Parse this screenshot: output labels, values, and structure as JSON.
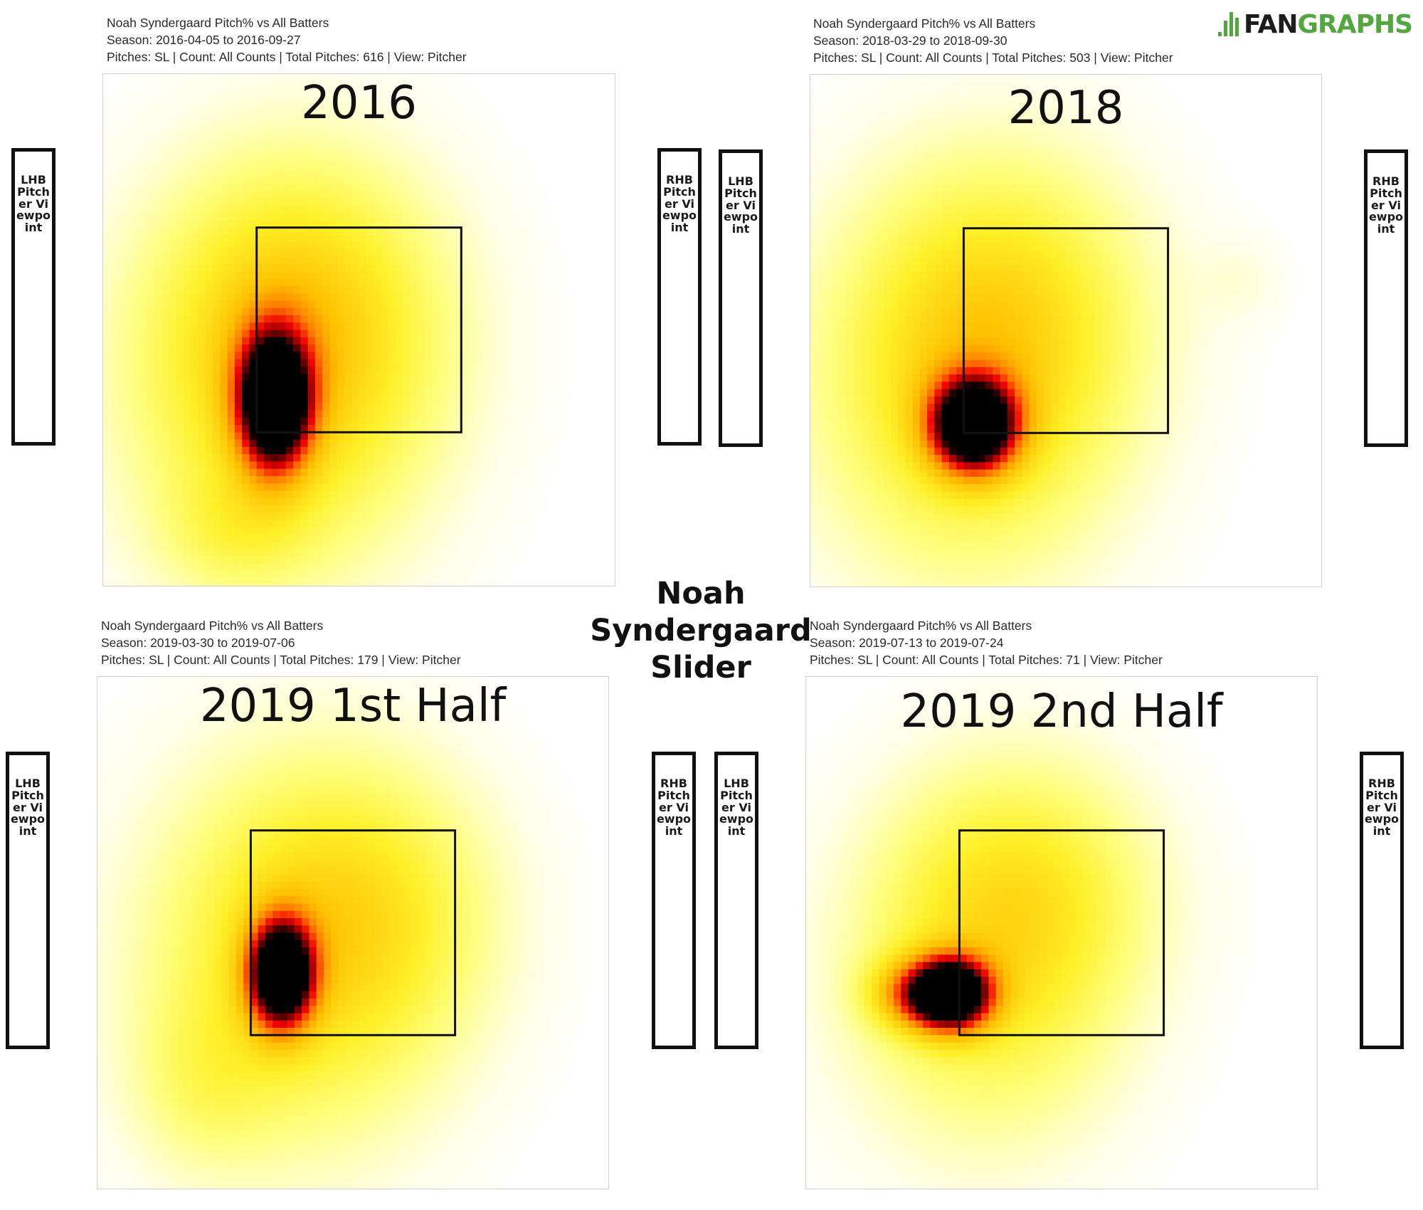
{
  "chart_data": {
    "title": "Noah Syndergaard Slider",
    "type": "heatmap",
    "panels": [
      {
        "title": "2016",
        "meta": [
          "Noah Syndergaard Pitch% vs All Batters",
          "Season: 2016-04-05 to 2016-09-27",
          "Pitches: SL | Count: All Counts | Total Pitches: 616 | View: Pitcher"
        ],
        "left_label": "LHB Pitcher Viewpoint",
        "right_label": "RHB Pitcher Viewpoint",
        "hotspots": [
          {
            "x": 0.34,
            "y": 0.62,
            "sx": 0.22,
            "sy": 0.28,
            "w": 0.35
          },
          {
            "x": 0.4,
            "y": 0.45,
            "sx": 0.2,
            "sy": 0.22,
            "w": 0.25
          },
          {
            "x": 0.25,
            "y": 0.9,
            "sx": 0.1,
            "sy": 0.08,
            "w": 0.12
          },
          {
            "x": 0.335,
            "y": 0.64,
            "sx": 0.05,
            "sy": 0.095,
            "w": 1.0
          }
        ]
      },
      {
        "title": "2018",
        "meta": [
          "Noah Syndergaard Pitch% vs All Batters",
          "Season: 2018-03-29 to 2018-09-30",
          "Pitches: SL | Count: All Counts | Total Pitches: 503 | View: Pitcher"
        ],
        "left_label": "LHB Pitcher Viewpoint",
        "right_label": "RHB Pitcher Viewpoint",
        "hotspots": [
          {
            "x": 0.3,
            "y": 0.62,
            "sx": 0.22,
            "sy": 0.28,
            "w": 0.35
          },
          {
            "x": 0.4,
            "y": 0.45,
            "sx": 0.2,
            "sy": 0.22,
            "w": 0.22
          },
          {
            "x": 0.85,
            "y": 0.4,
            "sx": 0.06,
            "sy": 0.06,
            "w": 0.06
          },
          {
            "x": 0.32,
            "y": 0.685,
            "sx": 0.06,
            "sy": 0.065,
            "w": 1.0
          }
        ]
      },
      {
        "title": "2019 1st Half",
        "meta": [
          "Noah Syndergaard Pitch% vs All Batters",
          "Season: 2019-03-30 to 2019-07-06",
          "Pitches: SL | Count: All Counts | Total Pitches: 179 | View: Pitcher"
        ],
        "left_label": "LHB Pitcher Viewpoint",
        "right_label": "RHB Pitcher Viewpoint",
        "hotspots": [
          {
            "x": 0.38,
            "y": 0.55,
            "sx": 0.22,
            "sy": 0.28,
            "w": 0.35
          },
          {
            "x": 0.55,
            "y": 0.45,
            "sx": 0.18,
            "sy": 0.2,
            "w": 0.2
          },
          {
            "x": 0.2,
            "y": 0.8,
            "sx": 0.1,
            "sy": 0.12,
            "w": 0.12
          },
          {
            "x": 0.36,
            "y": 0.58,
            "sx": 0.045,
            "sy": 0.075,
            "w": 1.0
          }
        ]
      },
      {
        "title": "2019 2nd Half",
        "meta": [
          "Noah Syndergaard Pitch% vs All Batters",
          "Season: 2019-07-13 to 2019-07-24",
          "Pitches: SL | Count: All Counts | Total Pitches: 71 | View: Pitcher"
        ],
        "left_label": "LHB Pitcher Viewpoint",
        "right_label": "RHB Pitcher Viewpoint",
        "hotspots": [
          {
            "x": 0.35,
            "y": 0.58,
            "sx": 0.2,
            "sy": 0.25,
            "w": 0.32
          },
          {
            "x": 0.45,
            "y": 0.4,
            "sx": 0.18,
            "sy": 0.18,
            "w": 0.2
          },
          {
            "x": 0.2,
            "y": 0.62,
            "sx": 0.06,
            "sy": 0.05,
            "w": 0.35
          },
          {
            "x": 0.285,
            "y": 0.62,
            "sx": 0.055,
            "sy": 0.05,
            "w": 1.0
          }
        ]
      }
    ]
  },
  "logo": {
    "fan": "FAN",
    "graphs": "GRAPHS",
    "icon": "fangraphs-logo-icon",
    "brand_color": "#52a73f"
  }
}
